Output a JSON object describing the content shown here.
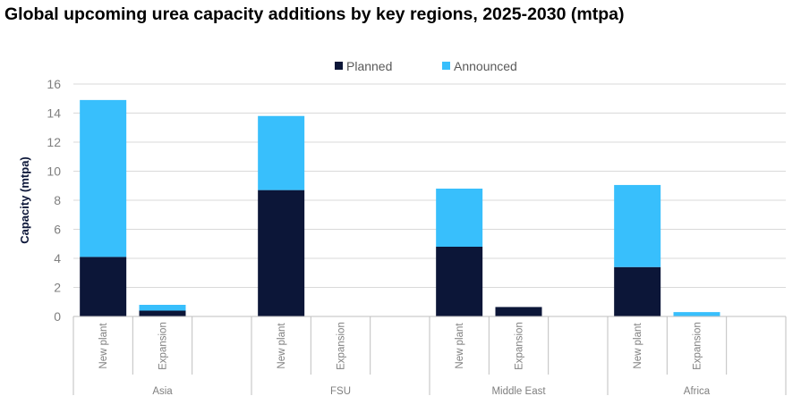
{
  "chart_data": {
    "type": "bar",
    "stacked": true,
    "title": "Global upcoming urea capacity additions by key regions, 2025-2030 (mtpa)",
    "ylabel": "Capacity (mtpa)",
    "xlabel": "",
    "ylim": [
      0,
      16
    ],
    "yticks": [
      0,
      2,
      4,
      6,
      8,
      10,
      12,
      14,
      16
    ],
    "grid": true,
    "legend_position": "top-center",
    "groups": [
      "Asia",
      "FSU",
      "Middle East",
      "Africa"
    ],
    "subcategories": [
      "New plant",
      "Expansion"
    ],
    "series": [
      {
        "name": "Planned",
        "color": "#0c1638",
        "values": [
          [
            4.1,
            0.4
          ],
          [
            8.7,
            0.0
          ],
          [
            4.8,
            0.65
          ],
          [
            3.4,
            0.0
          ]
        ]
      },
      {
        "name": "Announced",
        "color": "#38bffc",
        "values": [
          [
            10.8,
            0.4
          ],
          [
            5.1,
            0.0
          ],
          [
            4.0,
            0.0
          ],
          [
            5.65,
            0.3
          ]
        ]
      }
    ]
  }
}
